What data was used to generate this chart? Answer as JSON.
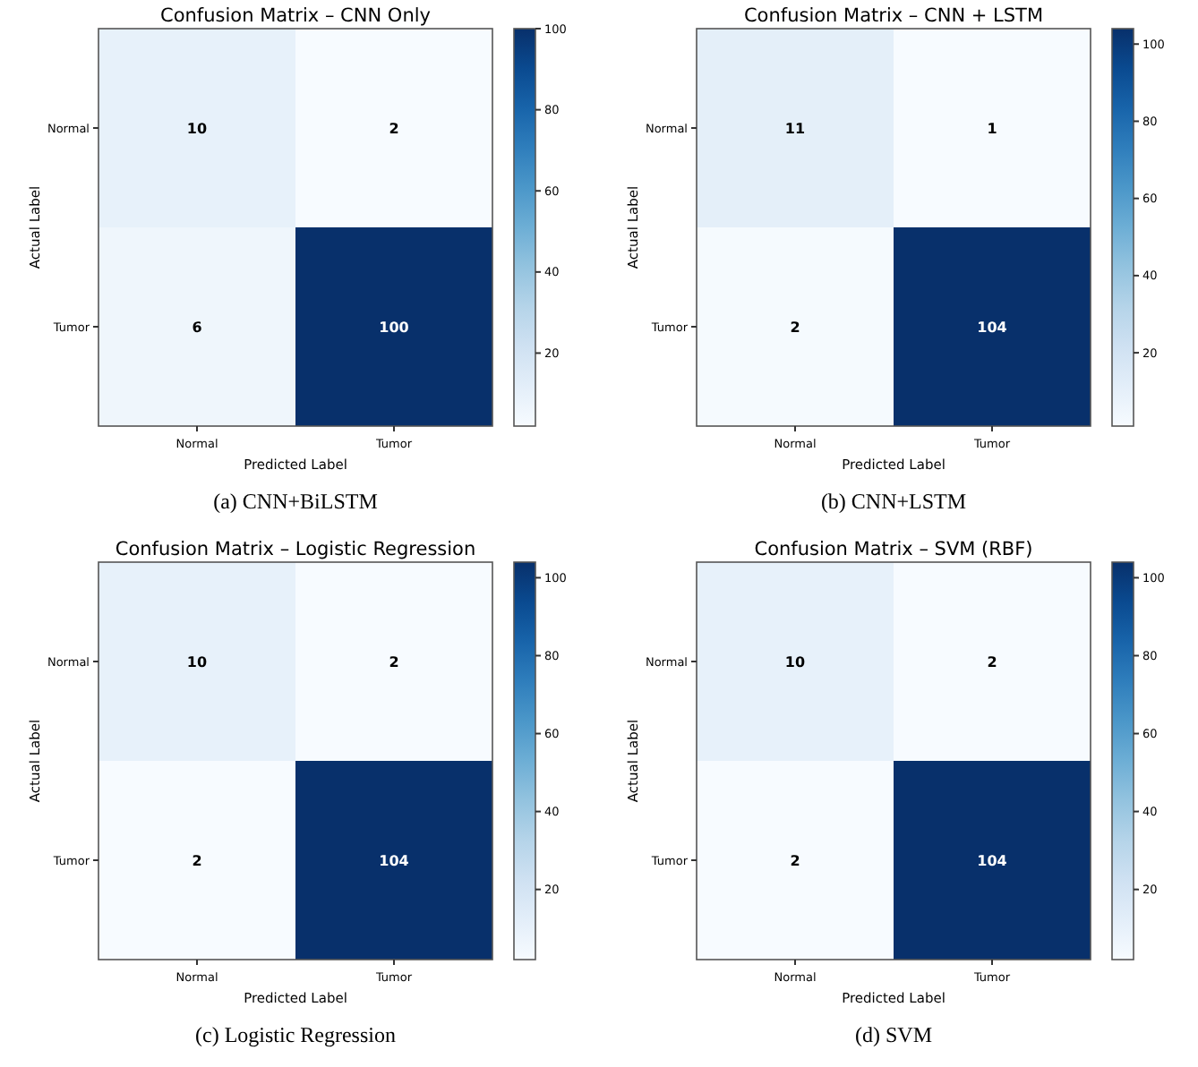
{
  "chart_data": [
    {
      "type": "heatmap",
      "title": "Confusion Matrix – CNN Only",
      "xlabel": "Predicted Label",
      "ylabel": "Actual Label",
      "categories": [
        "Normal",
        "Tumor"
      ],
      "y_categories": [
        "Normal",
        "Tumor"
      ],
      "cells": [
        [
          10,
          2
        ],
        [
          6,
          100
        ]
      ],
      "clim": [
        2,
        100
      ],
      "cticks": [
        20,
        40,
        60,
        80,
        100
      ],
      "annotations": [
        "(a) CNN+BiLSTM"
      ],
      "data_labels": true
    },
    {
      "type": "heatmap",
      "title": "Confusion Matrix – CNN + LSTM",
      "xlabel": "Predicted Label",
      "ylabel": "Actual Label",
      "categories": [
        "Normal",
        "Tumor"
      ],
      "y_categories": [
        "Normal",
        "Tumor"
      ],
      "cells": [
        [
          11,
          1
        ],
        [
          2,
          104
        ]
      ],
      "clim": [
        1,
        104
      ],
      "cticks": [
        20,
        40,
        60,
        80,
        100
      ],
      "annotations": [
        "(b) CNN+LSTM"
      ],
      "data_labels": true
    },
    {
      "type": "heatmap",
      "title": "Confusion Matrix – Logistic Regression",
      "xlabel": "Predicted Label",
      "ylabel": "Actual Label",
      "categories": [
        "Normal",
        "Tumor"
      ],
      "y_categories": [
        "Normal",
        "Tumor"
      ],
      "cells": [
        [
          10,
          2
        ],
        [
          2,
          104
        ]
      ],
      "clim": [
        2,
        104
      ],
      "cticks": [
        20,
        40,
        60,
        80,
        100
      ],
      "annotations": [
        "(c) Logistic Regression"
      ],
      "data_labels": true
    },
    {
      "type": "heatmap",
      "title": "Confusion Matrix – SVM (RBF)",
      "xlabel": "Predicted Label",
      "ylabel": "Actual Label",
      "categories": [
        "Normal",
        "Tumor"
      ],
      "y_categories": [
        "Normal",
        "Tumor"
      ],
      "cells": [
        [
          10,
          2
        ],
        [
          2,
          104
        ]
      ],
      "clim": [
        2,
        104
      ],
      "cticks": [
        20,
        40,
        60,
        80,
        100
      ],
      "annotations": [
        "(d) SVM"
      ],
      "data_labels": true
    }
  ]
}
